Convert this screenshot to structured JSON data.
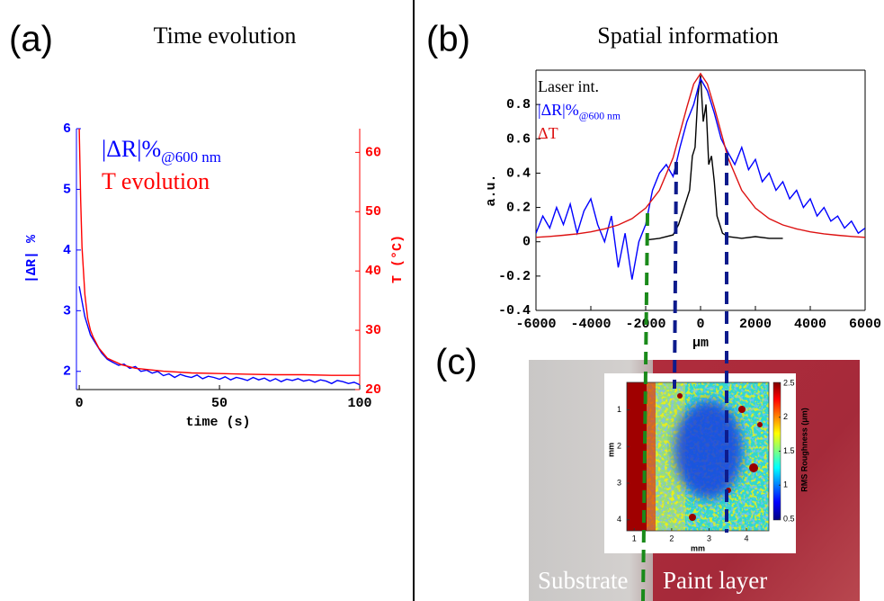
{
  "panel_labels": [
    "(a)",
    "(b)",
    "(c)"
  ],
  "chart_data": [
    {
      "type": "line",
      "title": "Time evolution",
      "xlabel": "time (s)",
      "ylabel": "|ΔR| %",
      "y2label": "T (°C)",
      "xlim": [
        -1,
        100
      ],
      "xticks": [
        0,
        50,
        100
      ],
      "ylim": [
        1.7,
        6
      ],
      "yticks": [
        2,
        3,
        4,
        5,
        6
      ],
      "ycolor": "#0000ff",
      "y2lim": [
        20,
        64
      ],
      "y2ticks": [
        20,
        30,
        40,
        50,
        60
      ],
      "y2color": "#ff0000",
      "legend": "upper left",
      "series": [
        {
          "name": "|ΔR|%",
          "name_sub": "@600 nm",
          "color": "#0000ff",
          "x": [
            0,
            2,
            4,
            6,
            8,
            10,
            12,
            14,
            16,
            18,
            20,
            22,
            24,
            26,
            28,
            30,
            32,
            34,
            36,
            38,
            40,
            42,
            44,
            46,
            48,
            50,
            52,
            54,
            56,
            58,
            60,
            62,
            64,
            66,
            68,
            70,
            72,
            74,
            76,
            78,
            80,
            82,
            84,
            86,
            88,
            90,
            92,
            94,
            96,
            98,
            100
          ],
          "values": [
            3.4,
            2.9,
            2.6,
            2.45,
            2.3,
            2.2,
            2.15,
            2.1,
            2.12,
            2.05,
            2.08,
            2.0,
            2.02,
            1.97,
            2.0,
            1.93,
            1.96,
            1.9,
            1.95,
            1.92,
            1.9,
            1.94,
            1.88,
            1.92,
            1.9,
            1.87,
            1.91,
            1.86,
            1.9,
            1.88,
            1.85,
            1.9,
            1.86,
            1.89,
            1.84,
            1.88,
            1.83,
            1.87,
            1.85,
            1.88,
            1.84,
            1.86,
            1.82,
            1.86,
            1.84,
            1.8,
            1.85,
            1.83,
            1.8,
            1.82,
            1.78
          ]
        },
        {
          "name": "T evolution",
          "color": "#ff0000",
          "axis": "y2",
          "x": [
            0,
            0.5,
            1,
            2,
            3,
            4,
            5,
            7,
            10,
            15,
            20,
            30,
            40,
            50,
            60,
            70,
            80,
            90,
            100
          ],
          "values": [
            64,
            52,
            44,
            36,
            32,
            30,
            28.8,
            27,
            25.3,
            24.2,
            23.6,
            23.1,
            22.8,
            22.7,
            22.6,
            22.5,
            22.5,
            22.4,
            22.4
          ]
        }
      ]
    },
    {
      "type": "line",
      "title": "Spatial information",
      "xlabel": "μm",
      "ylabel": "a.u.",
      "xlim": [
        -6000,
        6000
      ],
      "xticks": [
        -6000,
        -4000,
        -2000,
        0,
        2000,
        4000,
        6000
      ],
      "ylim": [
        -0.4,
        1.0
      ],
      "yticks": [
        -0.4,
        -0.2,
        0,
        0.2,
        0.4,
        0.6,
        0.8
      ],
      "legend": "upper left",
      "series": [
        {
          "name": "Laser int.",
          "color": "#000000",
          "x": [
            -2000,
            -1500,
            -1000,
            -800,
            -600,
            -400,
            -300,
            -200,
            -100,
            0,
            100,
            200,
            300,
            400,
            500,
            600,
            800,
            1000,
            1500,
            2000,
            2500,
            3000
          ],
          "values": [
            0.01,
            0.02,
            0.04,
            0.1,
            0.2,
            0.3,
            0.5,
            0.55,
            0.85,
            0.97,
            0.7,
            0.8,
            0.45,
            0.5,
            0.35,
            0.15,
            0.05,
            0.03,
            0.02,
            0.03,
            0.02,
            0.02
          ]
        },
        {
          "name": "|ΔR|%",
          "name_sub": "@600 nm",
          "color": "#0000ff",
          "x": [
            -6000,
            -5750,
            -5500,
            -5250,
            -5000,
            -4750,
            -4500,
            -4250,
            -4000,
            -3750,
            -3500,
            -3250,
            -3000,
            -2750,
            -2500,
            -2250,
            -2000,
            -1750,
            -1500,
            -1250,
            -1000,
            -750,
            -500,
            -250,
            0,
            250,
            500,
            750,
            1000,
            1250,
            1500,
            1750,
            2000,
            2250,
            2500,
            2750,
            3000,
            3250,
            3500,
            3750,
            4000,
            4250,
            4500,
            4750,
            5000,
            5250,
            5500,
            5750,
            6000
          ],
          "values": [
            0.05,
            0.15,
            0.08,
            0.2,
            0.1,
            0.22,
            0.05,
            0.18,
            0.25,
            0.1,
            0.0,
            0.15,
            -0.15,
            0.05,
            -0.22,
            0.0,
            0.1,
            0.3,
            0.4,
            0.45,
            0.38,
            0.55,
            0.7,
            0.8,
            0.95,
            0.88,
            0.75,
            0.6,
            0.52,
            0.45,
            0.55,
            0.42,
            0.48,
            0.35,
            0.4,
            0.3,
            0.35,
            0.25,
            0.3,
            0.2,
            0.25,
            0.15,
            0.2,
            0.12,
            0.15,
            0.08,
            0.12,
            0.05,
            0.08
          ]
        },
        {
          "name": "ΔT",
          "color": "#dd1111",
          "x": [
            -6000,
            -5500,
            -5000,
            -4500,
            -4000,
            -3500,
            -3000,
            -2500,
            -2000,
            -1500,
            -1000,
            -500,
            -250,
            0,
            250,
            500,
            1000,
            1500,
            2000,
            2500,
            3000,
            3500,
            4000,
            4500,
            5000,
            5500,
            6000
          ],
          "values": [
            0.026,
            0.031,
            0.038,
            0.046,
            0.058,
            0.075,
            0.098,
            0.135,
            0.196,
            0.3,
            0.49,
            0.784,
            0.92,
            0.98,
            0.92,
            0.784,
            0.49,
            0.3,
            0.196,
            0.135,
            0.098,
            0.075,
            0.058,
            0.046,
            0.038,
            0.031,
            0.026
          ]
        }
      ]
    },
    {
      "type": "image",
      "xlabel": "mm",
      "ylabel": "mm",
      "xlim": [
        0.8,
        4.6
      ],
      "xticks": [
        1,
        2,
        3,
        4
      ],
      "ylim": [
        0.25,
        4.3
      ],
      "yticks": [
        1,
        2,
        3,
        4
      ],
      "clim": [
        0.5,
        2.5
      ],
      "colorbar_ticks": [
        0.5,
        1,
        1.5,
        2,
        2.5
      ],
      "colorbar_label": "RMS Roughness (μm)",
      "region_labels": [
        "Substrate",
        "Paint layer"
      ]
    }
  ]
}
